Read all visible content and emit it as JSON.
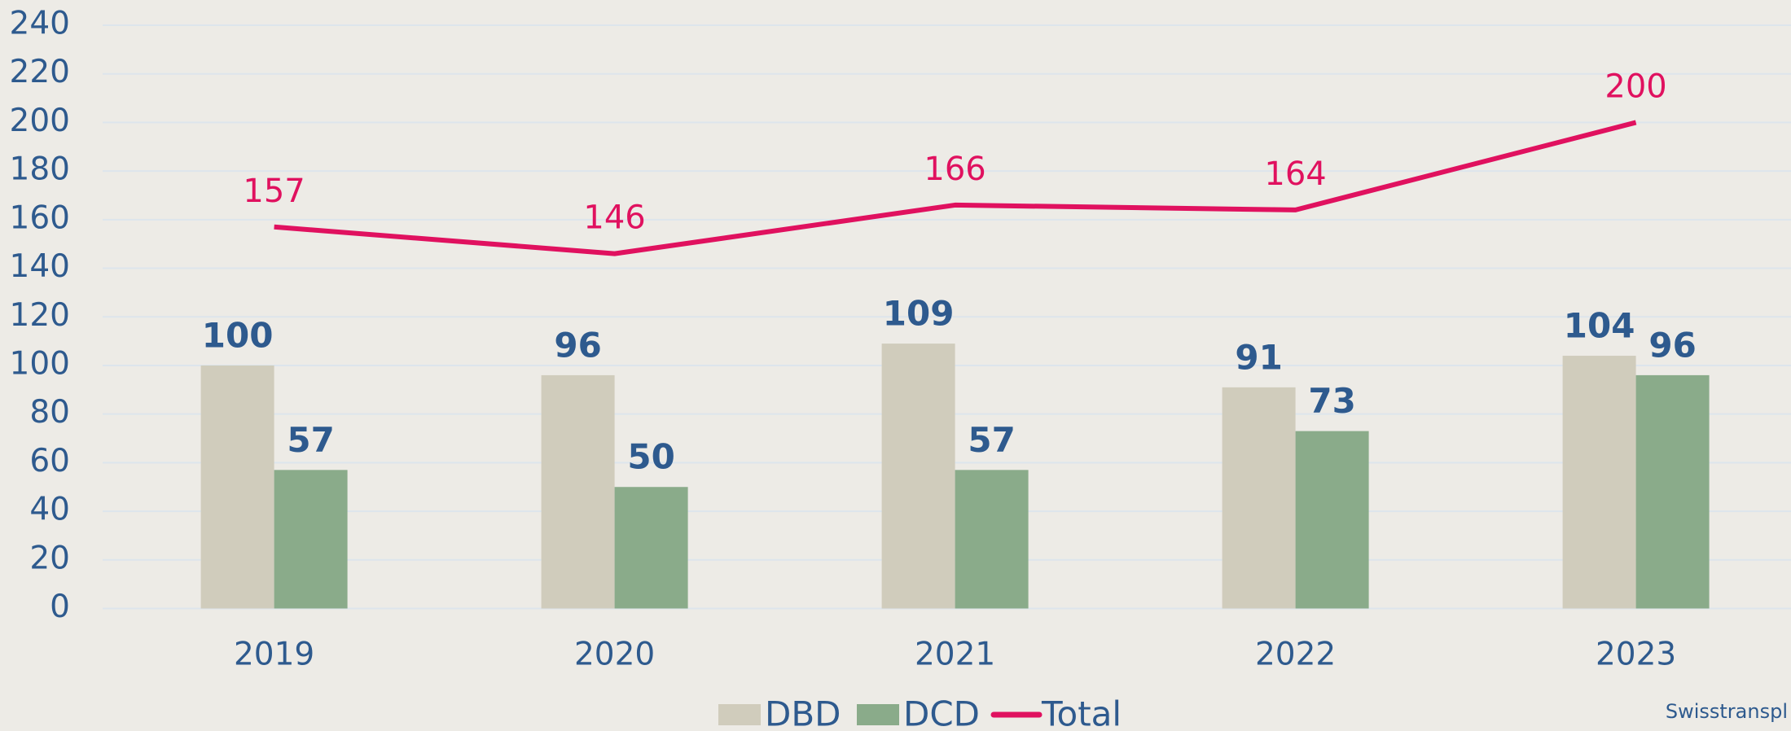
{
  "chart_data": {
    "type": "bar-line",
    "categories": [
      "2019",
      "2020",
      "2021",
      "2022",
      "2023"
    ],
    "series": [
      {
        "name": "DBD",
        "type": "bar",
        "color": "#d0ccbc",
        "values": [
          100,
          96,
          109,
          91,
          104
        ]
      },
      {
        "name": "DCD",
        "type": "bar",
        "color": "#8aab8a",
        "values": [
          57,
          50,
          57,
          73,
          96
        ]
      },
      {
        "name": "Total",
        "type": "line",
        "color": "#e0115f",
        "values": [
          157,
          146,
          166,
          164,
          200
        ]
      }
    ],
    "ylim": [
      0,
      240
    ],
    "yticks": [
      0,
      20,
      40,
      60,
      80,
      100,
      120,
      140,
      160,
      180,
      200,
      220,
      240
    ],
    "grid": true,
    "legend": "bottom",
    "source": "Swisstranspl"
  }
}
